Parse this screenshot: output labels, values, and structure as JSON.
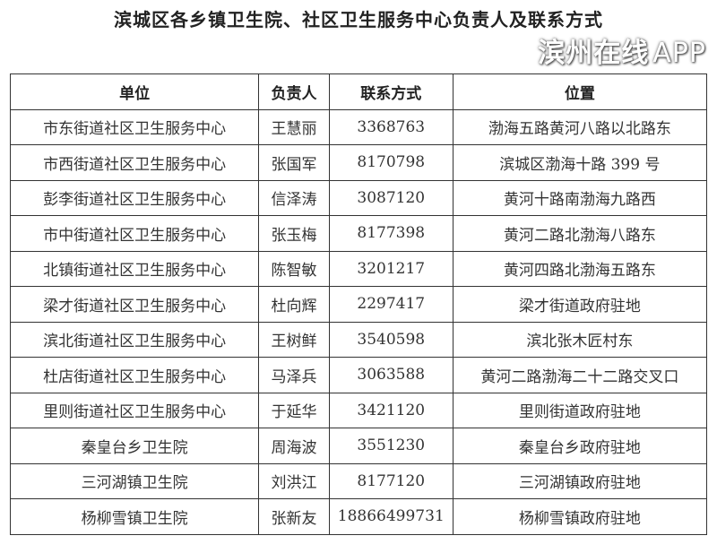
{
  "title": "滨城区各乡镇卫生院、社区卫生服务中心负责人及联系方式",
  "table": {
    "headers": [
      "单位",
      "负责人",
      "联系方式",
      "位置"
    ],
    "rows": [
      [
        "市东街道社区卫生服务中心",
        "王慧丽",
        "3368763",
        "渤海五路黄河八路以北路东"
      ],
      [
        "市西街道社区卫生服务中心",
        "张国军",
        "8170798",
        "滨城区渤海十路 399 号"
      ],
      [
        "彭李街道社区卫生服务中心",
        "信泽涛",
        "3087120",
        "黄河十路南渤海九路西"
      ],
      [
        "市中街道社区卫生服务中心",
        "张玉梅",
        "8177398",
        "黄河二路北渤海八路东"
      ],
      [
        "北镇街道社区卫生服务中心",
        "陈智敏",
        "3201217",
        "黄河四路北渤海五路东"
      ],
      [
        "梁才街道社区卫生服务中心",
        "杜向辉",
        "2297417",
        "梁才街道政府驻地"
      ],
      [
        "滨北街道社区卫生服务中心",
        "王树鲜",
        "3540598",
        "滨北张木匠村东"
      ],
      [
        "杜店街道社区卫生服务中心",
        "马泽兵",
        "3063588",
        "黄河二路渤海二十二路交叉口"
      ],
      [
        "里则街道社区卫生服务中心",
        "于延华",
        "3421120",
        "里则街道政府驻地"
      ],
      [
        "秦皇台乡卫生院",
        "周海波",
        "3551230",
        "秦皇台乡政府驻地"
      ],
      [
        "三河湖镇卫生院",
        "刘洪江",
        "8177120",
        "三河湖镇政府驻地"
      ],
      [
        "杨柳雪镇卫生院",
        "张新友",
        "18866499731",
        "杨柳雪镇政府驻地"
      ]
    ]
  },
  "watermark": {
    "text": "滨州在线",
    "suffix": "APP"
  }
}
